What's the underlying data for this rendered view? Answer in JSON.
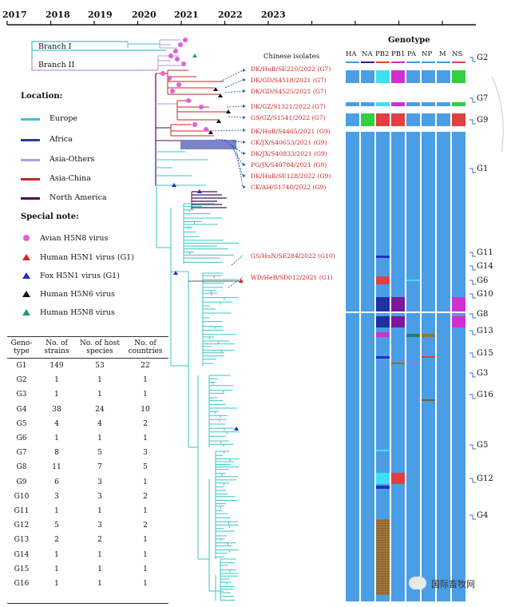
{
  "timeline": {
    "years": [
      "2017",
      "2018",
      "2019",
      "2020",
      "2021",
      "2022",
      "2023"
    ]
  },
  "branches": [
    "Branch I",
    "Branch II"
  ],
  "isolates_title": "Chinese isolates",
  "isolates": [
    "DK/HuB/SE220/2022 (G7)",
    "DK/GD/S4518/2021 (G7)",
    "DK/GD/S4525/2021 (G7)",
    "DK/GZ/S1321/2022 (G7)",
    "GS/GZ/S1541/2022 (G7)",
    "DK/HuB/S4465/2021 (G9)",
    "CK/JX/S40653/2021 (G9)",
    "DK/JX/S40833/2021 (G9)",
    "PG/JX/S40784/2021 (G9)",
    "DK/HuB/SE128/2022 (G9)",
    "CK/AH/S1740/2022 (G9)",
    "GS/HuN/SE284/2022 (G10)",
    "WD/HeB/SD012/2021 (G1)"
  ],
  "legend": {
    "location_title": "Location:",
    "locations": [
      {
        "label": "Europe",
        "color": "#3cc5c5"
      },
      {
        "label": "Africa",
        "color": "#2b3aa8"
      },
      {
        "label": "Asia-Others",
        "color": "#b59ae6"
      },
      {
        "label": "Asia-China",
        "color": "#c0281e"
      },
      {
        "label": "North America",
        "color": "#4a1050"
      }
    ],
    "note_title": "Special note:",
    "notes": [
      {
        "label": "Avian H5N8 virus",
        "color": "#e060e0",
        "shape": "circle"
      },
      {
        "label": "Human H5N1 virus (G1)",
        "color": "#e02020",
        "shape": "triangle"
      },
      {
        "label": "Fox H5N1 virus (G1)",
        "color": "#2030c0",
        "shape": "triangle"
      },
      {
        "label": "Human H5N6 virus",
        "color": "#111111",
        "shape": "triangle"
      },
      {
        "label": "Human H5N8 virus",
        "color": "#20a060",
        "shape": "triangle"
      }
    ]
  },
  "genotype_panel": {
    "title": "Genotype",
    "segments": [
      "HA",
      "NA",
      "PB2",
      "PB1",
      "PA",
      "NP",
      "M",
      "NS"
    ],
    "segment_colors": [
      "#3aa0d8",
      "#3a1a8a",
      "#e04040",
      "#c030c0",
      "#3aa0d8",
      "#3aa0d8",
      "#3aa0d8",
      "#e04040"
    ],
    "base_color": "#4a9ee6",
    "labels": [
      "G2",
      "G7",
      "G9",
      "G1",
      "G11",
      "G14",
      "G6",
      "G10",
      "G8",
      "G13",
      "G15",
      "G3",
      "G16",
      "G5",
      "G12",
      "G4"
    ]
  },
  "table": {
    "headers": [
      "Geno-type",
      "No. of strains",
      "No. of host species",
      "No. of countries"
    ],
    "rows": [
      [
        "G1",
        "149",
        "53",
        "22"
      ],
      [
        "G2",
        "1",
        "1",
        "1"
      ],
      [
        "G3",
        "1",
        "1",
        "1"
      ],
      [
        "G4",
        "38",
        "24",
        "10"
      ],
      [
        "G5",
        "4",
        "4",
        "2"
      ],
      [
        "G6",
        "1",
        "1",
        "1"
      ],
      [
        "G7",
        "8",
        "5",
        "3"
      ],
      [
        "G8",
        "11",
        "7",
        "5"
      ],
      [
        "G9",
        "6",
        "3",
        "1"
      ],
      [
        "G10",
        "3",
        "3",
        "2"
      ],
      [
        "G11",
        "1",
        "1",
        "1"
      ],
      [
        "G12",
        "5",
        "3",
        "2"
      ],
      [
        "G13",
        "2",
        "2",
        "1"
      ],
      [
        "G14",
        "1",
        "1",
        "1"
      ],
      [
        "G15",
        "1",
        "1",
        "1"
      ],
      [
        "G16",
        "1",
        "1",
        "1"
      ]
    ]
  },
  "watermark": "国际畜牧网"
}
